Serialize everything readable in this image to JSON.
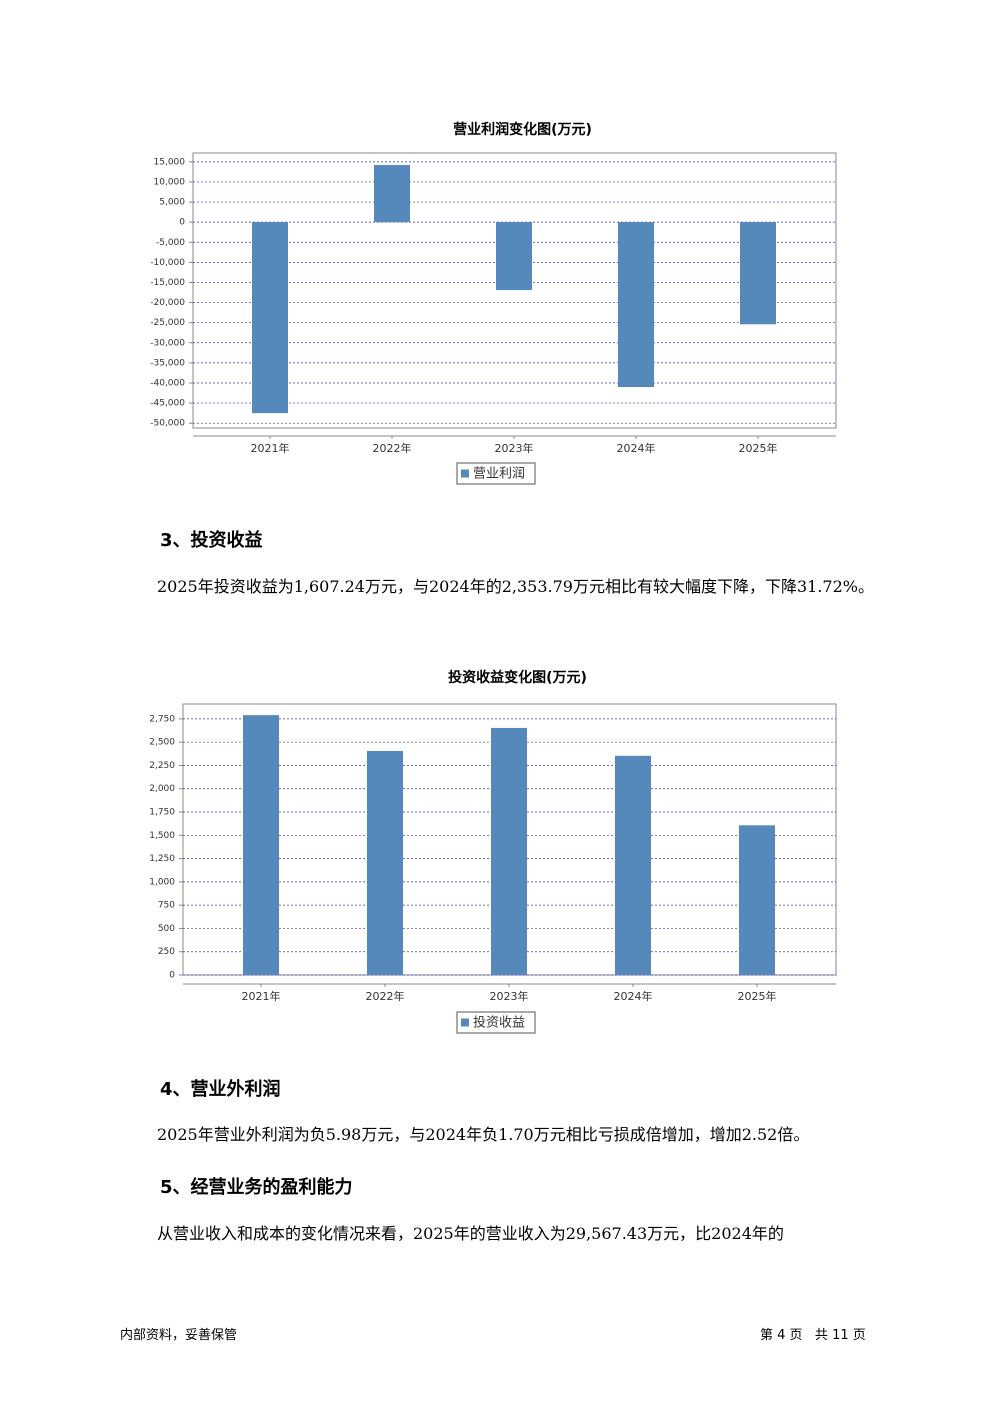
{
  "chart_data": [
    {
      "type": "bar",
      "title": "营业利润变化图(万元)",
      "categories": [
        "2021年",
        "2022年",
        "2023年",
        "2024年",
        "2025年"
      ],
      "series": [
        {
          "name": "营业利润",
          "color": "#5588bb",
          "values": [
            -47500,
            14200,
            -16900,
            -41000,
            -25400
          ]
        }
      ],
      "ylim": [
        -51200,
        17200
      ],
      "yticks": [
        {
          "value": 15000,
          "label": "15,000"
        },
        {
          "value": 10000,
          "label": "10,000"
        },
        {
          "value": 5000,
          "label": "5,000"
        },
        0,
        {
          "value": -5000,
          "label": "-5,000"
        },
        {
          "value": -10000,
          "label": "-10,000"
        },
        {
          "value": -15000,
          "label": "-15,000"
        },
        {
          "value": -20000,
          "label": "-20,000"
        },
        {
          "value": -25000,
          "label": "-25,000"
        },
        {
          "value": -30000,
          "label": "-30,000"
        },
        {
          "value": -35000,
          "label": "-35,000"
        },
        {
          "value": -40000,
          "label": "-40,000"
        },
        {
          "value": -45000,
          "label": "-45,000"
        },
        {
          "value": -50000,
          "label": "-50,000"
        }
      ],
      "grid": true
    },
    {
      "type": "bar",
      "title": "投资收益变化图(万元)",
      "categories": [
        "2021年",
        "2022年",
        "2023年",
        "2024年",
        "2025年"
      ],
      "series": [
        {
          "name": "投资收益",
          "color": "#5588bb",
          "values": [
            2790,
            2406,
            2653,
            2353.79,
            1607.24
          ]
        }
      ],
      "ylim": [
        0,
        2910
      ],
      "yticks": [
        {
          "value": 2750,
          "label": "2,750"
        },
        {
          "value": 2500,
          "label": "2,500"
        },
        {
          "value": 2250,
          "label": "2,250"
        },
        {
          "value": 2000,
          "label": "2,000"
        },
        {
          "value": 1750,
          "label": "1,750"
        },
        {
          "value": 1500,
          "label": "1,500"
        },
        {
          "value": 1250,
          "label": "1,250"
        },
        {
          "value": 1000,
          "label": "1,000"
        },
        750,
        500,
        250,
        0
      ],
      "grid": true
    }
  ],
  "sections": [
    {
      "heading": "3、投资收益",
      "text": "2025年投资收益为1,607.24万元，与2024年的2,353.79万元相比有较大幅度下降，下降31.72%。"
    },
    {
      "heading": "4、营业外利润",
      "text": "2025年营业外利润为负5.98万元，与2024年负1.70万元相比亏损成倍增加，增加2.52倍。"
    },
    {
      "heading": "5、经营业务的盈利能力",
      "text": "从营业收入和成本的变化情况来看，2025年的营业收入为29,567.43万元，比2024年的"
    }
  ],
  "footer": {
    "left": "内部资料，妥善保管",
    "right": "第 4 页   共 11 页"
  }
}
